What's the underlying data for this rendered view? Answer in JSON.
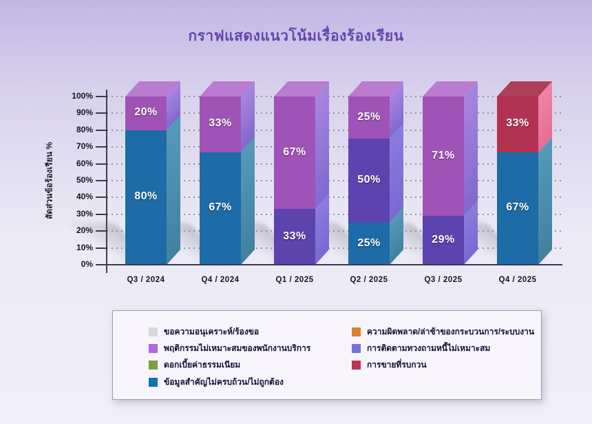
{
  "title": {
    "text": "กราฟแสดงแนวโน้มเรื่องร้องเรียน",
    "color": "#6345ac"
  },
  "y_axis": {
    "label": "สัดส่วนข้อร้องเรียน %",
    "ticks": [
      "100%",
      "90%",
      "80%",
      "70%",
      "60%",
      "50%",
      "40%",
      "30%",
      "20%",
      "10%",
      "0%"
    ]
  },
  "chart_data": {
    "type": "bar",
    "stacked": true,
    "unit": "%",
    "ylim": [
      0,
      100
    ],
    "grid": "dotted-horizontal",
    "legend_position": "bottom-box",
    "categories": [
      "Q3 / 2024",
      "Q4 / 2024",
      "Q1 / 2025",
      "Q2 / 2025",
      "Q3 / 2025",
      "Q4 / 2025"
    ],
    "series": [
      {
        "name": "ขอความอนุเคราะห์/ร้องขอ",
        "color": "#d8d8d8",
        "values": [
          0,
          0,
          0,
          0,
          0,
          0
        ]
      },
      {
        "name": "ความผิดพลาด/ล่าช้าของกระบวนการ/ระบบงาน",
        "color": "#e07f2d",
        "values": [
          0,
          0,
          0,
          0,
          0,
          0
        ]
      },
      {
        "name": "พฤติกรรมไม่เหมาะสมของพนักงานบริการ",
        "color": "#9f53b6",
        "values": [
          20,
          33,
          67,
          25,
          71,
          0
        ]
      },
      {
        "name": "การติดตามทวงถามหนี้ไม่เหมาะสม",
        "color": "#5c43ad",
        "values": [
          0,
          0,
          33,
          50,
          29,
          0
        ]
      },
      {
        "name": "ดอกเบี้ยค่าธรรมเนียม",
        "color": "#7d9d40",
        "values": [
          0,
          0,
          0,
          0,
          0,
          0
        ]
      },
      {
        "name": "การขายที่รบกวน",
        "color": "#b23351",
        "values": [
          0,
          0,
          0,
          0,
          0,
          33
        ]
      },
      {
        "name": "ข้อมูลสำคัญไม่ครบถ้วน/ไม่ถูกต้อง",
        "color": "#1d6ba7",
        "values": [
          80,
          67,
          0,
          25,
          0,
          67
        ]
      }
    ],
    "stacks": [
      {
        "category": "Q3 / 2024",
        "segments": [
          {
            "series": "ข้อมูลสำคัญไม่ครบถ้วน/ไม่ถูกต้อง",
            "palette": "blue",
            "value": 80,
            "label": "80%"
          },
          {
            "series": "พฤติกรรมไม่เหมาะสมของพนักงานบริการ",
            "palette": "magenta",
            "value": 20,
            "label": "20%"
          }
        ]
      },
      {
        "category": "Q4 / 2024",
        "segments": [
          {
            "series": "ข้อมูลสำคัญไม่ครบถ้วน/ไม่ถูกต้อง",
            "palette": "blue",
            "value": 67,
            "label": "67%"
          },
          {
            "series": "พฤติกรรมไม่เหมาะสมของพนักงานบริการ",
            "palette": "magenta",
            "value": 33,
            "label": "33%"
          }
        ]
      },
      {
        "category": "Q1 / 2025",
        "segments": [
          {
            "series": "การติดตามทวงถามหนี้ไม่เหมาะสม",
            "palette": "indigo",
            "value": 33,
            "label": "33%"
          },
          {
            "series": "พฤติกรรมไม่เหมาะสมของพนักงานบริการ",
            "palette": "magenta",
            "value": 67,
            "label": "67%"
          }
        ]
      },
      {
        "category": "Q2 / 2025",
        "segments": [
          {
            "series": "ข้อมูลสำคัญไม่ครบถ้วน/ไม่ถูกต้อง",
            "palette": "blue",
            "value": 25,
            "label": "25%"
          },
          {
            "series": "การติดตามทวงถามหนี้ไม่เหมาะสม",
            "palette": "indigo",
            "value": 50,
            "label": "50%"
          },
          {
            "series": "พฤติกรรมไม่เหมาะสมของพนักงานบริการ",
            "palette": "magenta",
            "value": 25,
            "label": "25%"
          }
        ]
      },
      {
        "category": "Q3 / 2025",
        "segments": [
          {
            "series": "การติดตามทวงถามหนี้ไม่เหมาะสม",
            "palette": "indigo",
            "value": 29,
            "label": "29%"
          },
          {
            "series": "พฤติกรรมไม่เหมาะสมของพนักงานบริการ",
            "palette": "magenta",
            "value": 71,
            "label": "71%"
          }
        ]
      },
      {
        "category": "Q4 / 2025",
        "segments": [
          {
            "series": "ข้อมูลสำคัญไม่ครบถ้วน/ไม่ถูกต้อง",
            "palette": "blue",
            "value": 67,
            "label": "67%"
          },
          {
            "series": "การขายที่รบกวน",
            "palette": "red",
            "value": 33,
            "label": "33%"
          }
        ]
      }
    ],
    "palette": {
      "blue": {
        "front": "#1d6ba7",
        "side_top": "#559ab8",
        "side_bottom": "#41819f",
        "top": "#57a0bd"
      },
      "magenta": {
        "front": "#9f53b6",
        "side_top": "#a886de",
        "side_bottom": "#8168cf",
        "top": "#ba7bd1"
      },
      "indigo": {
        "front": "#5c43ad",
        "side_top": "#8b7cdd",
        "side_bottom": "#7a68d2",
        "top": "#7d66cd"
      },
      "red": {
        "front": "#b23351",
        "side_top": "#ee84a4",
        "side_bottom": "#e76d92",
        "top": "#ad3f58"
      }
    }
  },
  "legend": {
    "left": [
      {
        "label": "ขอความอนุเคราะห์/ร้องขอ",
        "color": "#d8d8d8"
      },
      {
        "label": "พฤติกรรมไม่เหมาะสมของพนักงานบริการ",
        "color": "#b464e4"
      },
      {
        "label": "ดอกเบี้ยค่าธรรมเนียม",
        "color": "#7d9d40"
      },
      {
        "label": "ข้อมูลสำคัญไม่ครบถ้วน/ไม่ถูกต้อง",
        "color": "#0e73ae"
      }
    ],
    "right": [
      {
        "label": "ความผิดพลาด/ล่าช้าของกระบวนการ/ระบบงาน",
        "color": "#e07f2d"
      },
      {
        "label": "การติดตามทวงถามหนี้ไม่เหมาะสม",
        "color": "#7870da"
      },
      {
        "label": "การขายที่รบกวน",
        "color": "#bf3354"
      }
    ]
  }
}
